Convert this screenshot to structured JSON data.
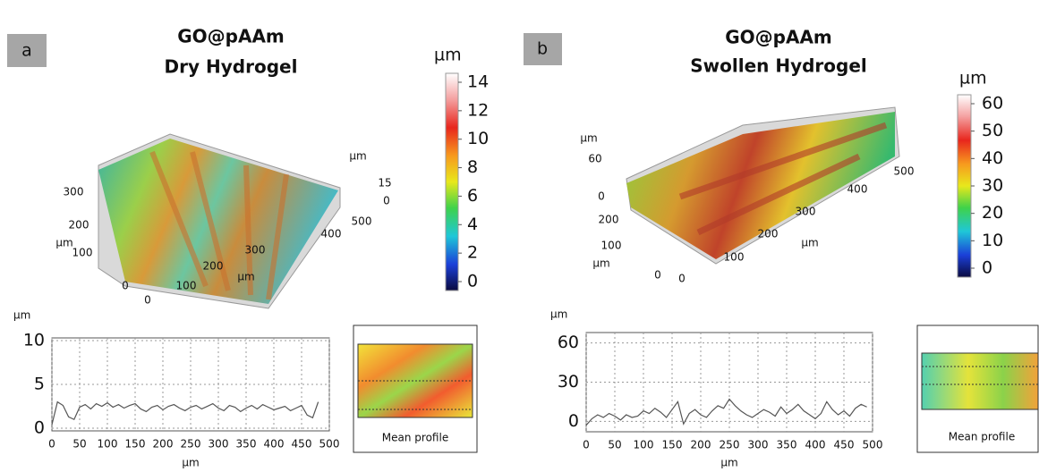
{
  "panels": [
    {
      "label": "a",
      "title": [
        "GO@pAAm",
        "Dry Hydrogel"
      ],
      "colorbar": {
        "unit": "µm",
        "lim": [
          0,
          14
        ],
        "ticks": [
          0,
          2,
          4,
          6,
          8,
          10,
          12,
          14
        ]
      },
      "surface_labels": [
        "300",
        "200",
        "µm",
        "100",
        "0",
        "0",
        "100",
        "200",
        "µm",
        "300",
        "400",
        "500",
        "µm",
        "15",
        "0"
      ],
      "inset_caption": "Mean profile"
    },
    {
      "label": "b",
      "title": [
        "GO@pAAm",
        "Swollen Hydrogel"
      ],
      "colorbar": {
        "unit": "µm",
        "lim": [
          0,
          60
        ],
        "ticks": [
          0,
          10,
          20,
          30,
          40,
          50,
          60
        ]
      },
      "surface_labels": [
        "µm",
        "60",
        "0",
        "200",
        "100",
        "µm",
        "0",
        "0",
        "100",
        "200",
        "µm",
        "300",
        "400",
        "500"
      ],
      "inset_caption": "Mean profile"
    }
  ],
  "chart_data": [
    {
      "type": "line",
      "x_label": "µm",
      "y_label": "µm",
      "color": "#555555",
      "grid": true,
      "x": [
        0,
        10,
        20,
        30,
        40,
        50,
        60,
        70,
        80,
        90,
        100,
        110,
        120,
        130,
        140,
        150,
        160,
        170,
        180,
        190,
        200,
        210,
        220,
        230,
        240,
        250,
        260,
        270,
        280,
        290,
        300,
        310,
        320,
        330,
        340,
        350,
        360,
        370,
        380,
        390,
        400,
        410,
        420,
        430,
        440,
        450,
        460,
        470,
        480
      ],
      "values": [
        0.4,
        3.0,
        2.6,
        1.3,
        1.0,
        2.4,
        2.7,
        2.2,
        2.8,
        2.5,
        2.9,
        2.4,
        2.7,
        2.3,
        2.6,
        2.8,
        2.2,
        1.9,
        2.4,
        2.6,
        2.1,
        2.5,
        2.7,
        2.3,
        2.0,
        2.4,
        2.6,
        2.2,
        2.5,
        2.8,
        2.3,
        2.0,
        2.6,
        2.4,
        1.9,
        2.3,
        2.6,
        2.2,
        2.7,
        2.4,
        2.1,
        2.3,
        2.5,
        2.0,
        2.3,
        2.6,
        1.5,
        1.2,
        3.0
      ],
      "xlim": [
        0,
        500
      ],
      "ylim": [
        -0.3,
        10.3
      ],
      "xticks": [
        0,
        50,
        100,
        150,
        200,
        250,
        300,
        350,
        400,
        450,
        500
      ],
      "yticks": [
        0,
        5,
        10
      ]
    },
    {
      "type": "line",
      "x_label": "µm",
      "y_label": "µm",
      "color": "#555555",
      "grid": true,
      "x": [
        0,
        10,
        20,
        30,
        40,
        50,
        60,
        70,
        80,
        90,
        100,
        110,
        120,
        130,
        140,
        150,
        160,
        170,
        180,
        190,
        200,
        210,
        220,
        230,
        240,
        250,
        260,
        270,
        280,
        290,
        300,
        310,
        320,
        330,
        340,
        350,
        360,
        370,
        380,
        390,
        400,
        410,
        420,
        430,
        440,
        450,
        460,
        470,
        480,
        490
      ],
      "values": [
        -3,
        2,
        5,
        3,
        6,
        4,
        1,
        5,
        3,
        4,
        8,
        6,
        10,
        7,
        3,
        9,
        15,
        -2,
        6,
        9,
        5,
        3,
        8,
        12,
        10,
        17,
        12,
        8,
        5,
        3,
        6,
        9,
        7,
        4,
        11,
        6,
        9,
        13,
        8,
        5,
        2,
        6,
        15,
        9,
        5,
        8,
        4,
        10,
        13,
        11
      ],
      "xlim": [
        0,
        500
      ],
      "ylim": [
        -8,
        68
      ],
      "xticks": [
        0,
        50,
        100,
        150,
        200,
        250,
        300,
        350,
        400,
        450,
        500
      ],
      "yticks": [
        0,
        30,
        60
      ]
    }
  ]
}
